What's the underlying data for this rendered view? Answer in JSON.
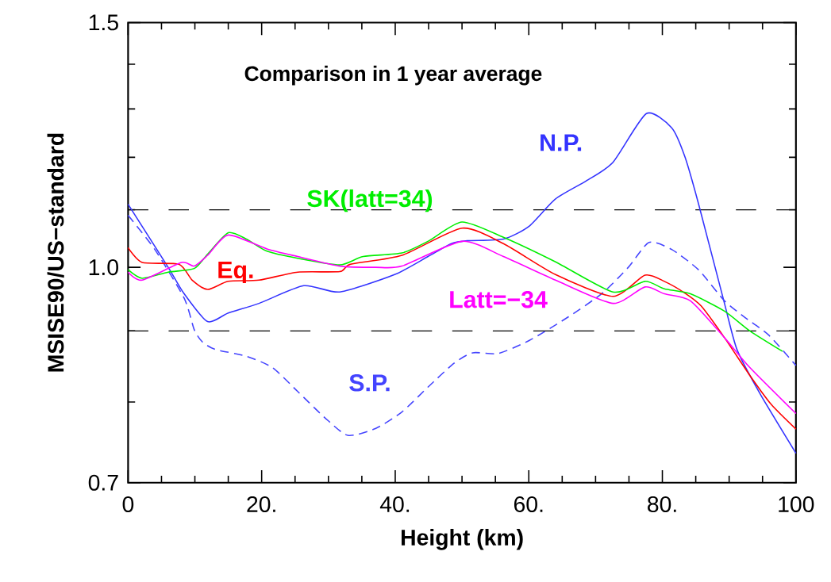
{
  "chart_data": {
    "type": "line",
    "title": "Comparison in 1 year average",
    "xlabel": "Height (km)",
    "ylabel": "MSISE90/US−standard",
    "log": true,
    "xlim": [
      0,
      100
    ],
    "ylim": [
      0.7,
      1.5
    ],
    "xticks": [
      0,
      {
        "value": 5,
        "label": null
      },
      {
        "value": 10,
        "label": null
      },
      {
        "value": 15,
        "label": null
      },
      {
        "value": 20,
        "label": "20."
      },
      {
        "value": 25,
        "label": null
      },
      {
        "value": 30,
        "label": null
      },
      {
        "value": 35,
        "label": null
      },
      {
        "value": 40,
        "label": "40."
      },
      {
        "value": 45,
        "label": null
      },
      {
        "value": 50,
        "label": null
      },
      {
        "value": 55,
        "label": null
      },
      {
        "value": 60,
        "label": "60."
      },
      {
        "value": 65,
        "label": null
      },
      {
        "value": 70,
        "label": null
      },
      {
        "value": 75,
        "label": null
      },
      {
        "value": 80,
        "label": "80."
      },
      {
        "value": 85,
        "label": null
      },
      {
        "value": 90,
        "label": null
      },
      {
        "value": 95,
        "label": null
      },
      100
    ],
    "yticks": [
      0.7,
      {
        "value": 0.8,
        "label": null
      },
      {
        "value": 0.9,
        "label": null
      },
      {
        "value": 1,
        "label": "1.0"
      },
      {
        "value": 1.1,
        "label": null
      },
      {
        "value": 1.2,
        "label": null
      },
      {
        "value": 1.3,
        "label": null
      },
      {
        "value": 1.4,
        "label": null
      },
      1.5
    ],
    "ref_lines": [
      {
        "axis": "y",
        "value": 1.1,
        "color": "#000000",
        "line_style": "dashed"
      },
      {
        "axis": "y",
        "value": 0.9,
        "color": "#000000",
        "line_style": "dashed"
      }
    ],
    "series": [
      {
        "name": "N.P.",
        "color": "#3333ff",
        "line_style": "solid",
        "x": [
          0,
          6,
          8.4,
          11.9,
          15,
          19.6,
          26.3,
          31.7,
          39.9,
          44.9,
          48.4,
          50.8,
          56.2,
          60,
          64,
          68.6,
          72.6,
          77.6,
          81.4,
          83.4,
          85.5,
          89.3,
          91.2,
          94.7,
          100
        ],
        "values": [
          1.11,
          1.0,
          0.957,
          0.914,
          0.927,
          0.942,
          0.97,
          0.96,
          0.988,
          1.018,
          1.04,
          1.045,
          1.048,
          1.07,
          1.12,
          1.154,
          1.19,
          1.29,
          1.26,
          1.2,
          1.107,
          0.942,
          0.872,
          0.81,
          0.735
        ]
      },
      {
        "name": "S.P.",
        "color": "#4444ff",
        "line_style": "dashed",
        "x": [
          0,
          4,
          8.4,
          9.9,
          11.1,
          13,
          17.7,
          21.6,
          25.4,
          29.4,
          32.9,
          37.1,
          41,
          44.9,
          48.8,
          51.6,
          55.4,
          60.1,
          65.9,
          71,
          74.9,
          78,
          81.4,
          85.4,
          89.3,
          92.4,
          95.9,
          100
        ],
        "values": [
          1.09,
          1.03,
          0.95,
          0.902,
          0.884,
          0.873,
          0.863,
          0.847,
          0.814,
          0.78,
          0.757,
          0.766,
          0.787,
          0.82,
          0.853,
          0.868,
          0.867,
          0.886,
          0.921,
          0.958,
          1.0,
          1.042,
          1.03,
          0.996,
          0.946,
          0.92,
          0.894,
          0.85
        ]
      },
      {
        "name": "Eq.",
        "color": "#ff0000",
        "line_style": "solid",
        "x": [
          0,
          2.1,
          7.6,
          9.6,
          11.9,
          15,
          19.6,
          25.4,
          31.7,
          33.3,
          41,
          50,
          56.2,
          64,
          72.6,
          77.4,
          80.3,
          83.4,
          85.8,
          89.3,
          93.1,
          96.3,
          100
        ],
        "values": [
          1.033,
          1.008,
          1.005,
          0.979,
          0.964,
          0.977,
          0.979,
          0.992,
          0.993,
          1.005,
          1.02,
          1.067,
          1.04,
          0.988,
          0.953,
          0.987,
          0.977,
          0.958,
          0.938,
          0.89,
          0.836,
          0.797,
          0.765
        ]
      },
      {
        "name": "SK(latt=34)",
        "color": "#00ee00",
        "line_style": "solid",
        "x": [
          0,
          2.1,
          6,
          9.9,
          11.9,
          15,
          17.7,
          20.8,
          25.4,
          31.7,
          35.2,
          41,
          44.9,
          50,
          56.2,
          64,
          72.6,
          77.4,
          80.3,
          84.2,
          89.3,
          93.1,
          98
        ],
        "values": [
          0.996,
          0.982,
          0.992,
          0.998,
          1.022,
          1.059,
          1.048,
          1.027,
          1.015,
          1.004,
          1.018,
          1.024,
          1.044,
          1.078,
          1.051,
          1.009,
          0.96,
          0.977,
          0.965,
          0.957,
          0.93,
          0.9,
          0.87
        ]
      },
      {
        "name": "Latt=−34",
        "color": "#ff00ff",
        "line_style": "solid",
        "x": [
          0,
          2.1,
          8,
          9.9,
          11.9,
          15,
          20.8,
          25.4,
          31.7,
          37.1,
          41,
          50,
          56.2,
          64,
          72.6,
          77.4,
          80.3,
          84.2,
          89.3,
          93.1,
          100
        ],
        "values": [
          0.992,
          0.979,
          1.008,
          1.002,
          1.02,
          1.055,
          1.031,
          1.018,
          1.002,
          1.0,
          1.002,
          1.044,
          1.018,
          0.979,
          0.942,
          0.968,
          0.957,
          0.946,
          0.89,
          0.847,
          0.785
        ]
      }
    ]
  }
}
